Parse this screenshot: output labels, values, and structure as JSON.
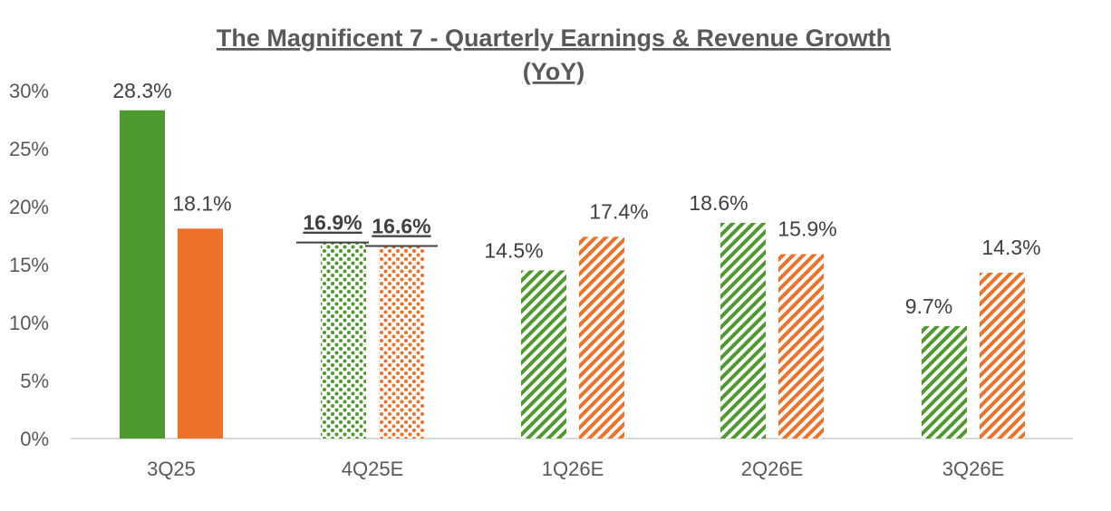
{
  "chart_data": {
    "type": "bar",
    "title_line1": "The Magnificent 7 - Quarterly Earnings & Revenue Growth",
    "title_line2": "(YoY)",
    "categories": [
      "3Q25",
      "4Q25E",
      "1Q26E",
      "2Q26E",
      "3Q26E"
    ],
    "ylim": [
      0,
      30
    ],
    "yticks": [
      "0%",
      "5%",
      "10%",
      "15%",
      "20%",
      "25%",
      "30%"
    ],
    "grid": false,
    "colors": {
      "earnings": "#4e9a2e",
      "revenue": "#ed7128"
    },
    "series": [
      {
        "values": [
          28.3,
          16.9,
          14.5,
          18.6,
          9.7
        ],
        "labels": [
          "28.3%",
          "16.9%",
          "14.5%",
          "18.6%",
          "9.7%"
        ],
        "fills": [
          "solid",
          "dotted",
          "hatched",
          "hatched",
          "hatched"
        ]
      },
      {
        "values": [
          18.1,
          16.6,
          17.4,
          15.9,
          14.3
        ],
        "labels": [
          "18.1%",
          "16.6%",
          "17.4%",
          "15.9%",
          "14.3%"
        ],
        "fills": [
          "solid",
          "dotted",
          "hatched",
          "hatched",
          "hatched"
        ]
      }
    ],
    "emphasized_labels_category": "4Q25E"
  }
}
